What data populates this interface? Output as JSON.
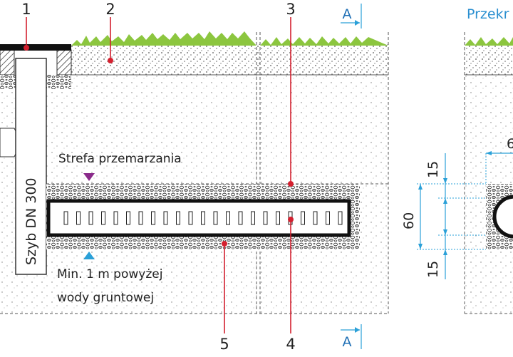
{
  "callouts": [
    "1",
    "2",
    "3",
    "4",
    "5"
  ],
  "section_marks": [
    "A",
    "A"
  ],
  "section_title": "Przekr",
  "frost_zone": "Strefa przemarzania",
  "shaft": "Szyb DN 300",
  "groundwater": [
    "Min. 1 m powyżej",
    "wody gruntowej"
  ],
  "dimensions": [
    "15",
    "60",
    "15",
    "6"
  ]
}
